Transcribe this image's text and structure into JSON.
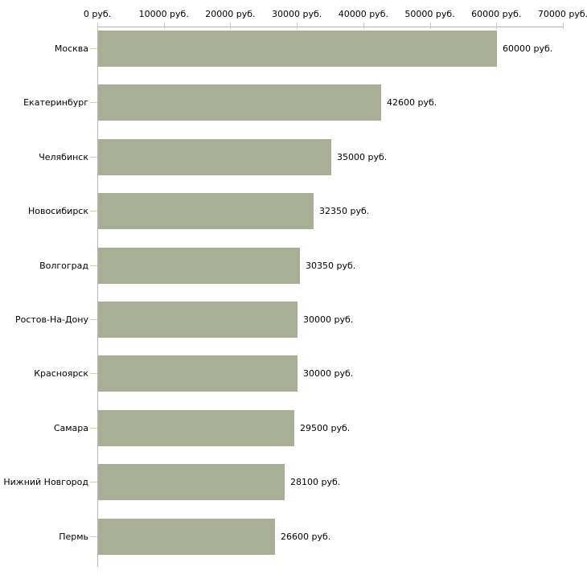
{
  "chart_data": {
    "type": "bar",
    "orientation": "horizontal",
    "title": "",
    "unit": "руб.",
    "categories": [
      "Москва",
      "Екатеринбург",
      "Челябинск",
      "Новосибирск",
      "Волгоград",
      "Ростов-На-Дону",
      "Красноярск",
      "Самара",
      "Нижний Новгород",
      "Пермь"
    ],
    "values": [
      60000,
      42600,
      35000,
      32350,
      30350,
      30000,
      30000,
      29500,
      28100,
      26600
    ],
    "value_labels": [
      "60000 руб.",
      "42600 руб.",
      "35000 руб.",
      "32350 руб.",
      "30350 руб.",
      "30000 руб.",
      "30000 руб.",
      "29500 руб.",
      "28100 руб.",
      "26600 руб."
    ],
    "x_axis": {
      "position": "top",
      "xlim": [
        0,
        70000
      ],
      "ticks": [
        0,
        10000,
        20000,
        30000,
        40000,
        50000,
        60000,
        70000
      ],
      "tick_labels": [
        "0 руб.",
        "10000 руб.",
        "20000 руб.",
        "30000 руб.",
        "40000 руб.",
        "50000 руб.",
        "60000 руб.",
        "70000 руб."
      ]
    },
    "grid": false,
    "legend": null,
    "colors": {
      "bar": "#a9af94",
      "axis_line": "#b3b3b3",
      "tick_mark": "#cfcfa3",
      "text": "#000000",
      "background": "#ffffff"
    }
  }
}
